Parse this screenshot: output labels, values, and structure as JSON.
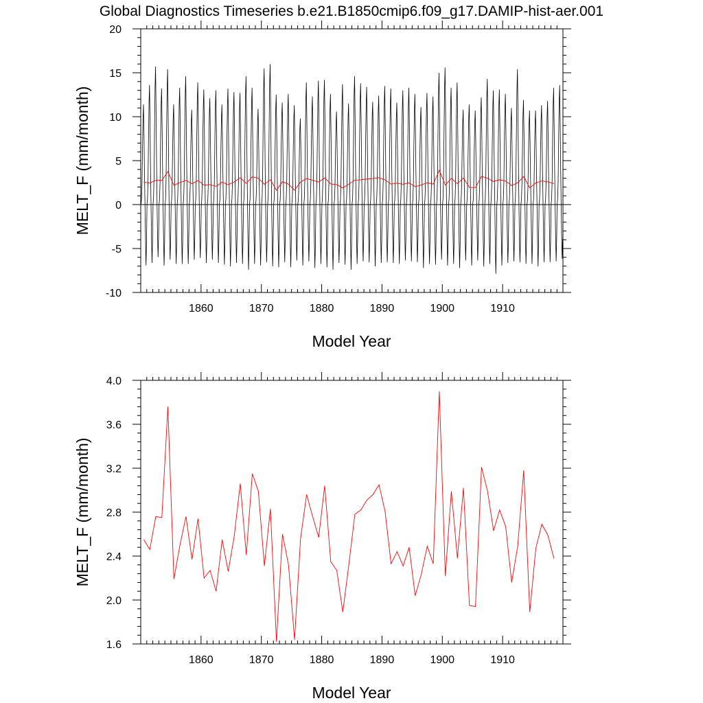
{
  "title": "Global Diagnostics Timeseries b.e21.B1850cmip6.f09_g17.DAMIP-hist-aer.001",
  "chart_data": [
    {
      "type": "line",
      "xlabel": "Model Year",
      "ylabel": "MELT_F (mm/month)",
      "xlim": [
        1850,
        1920
      ],
      "ylim": [
        -10,
        20
      ],
      "xticks": [
        "1860",
        "1870",
        "1880",
        "1890",
        "1900",
        "1910"
      ],
      "yticks": [
        "-10",
        "-5",
        "0",
        "5",
        "10",
        "15",
        "20"
      ],
      "reference_line": 0,
      "series": [
        {
          "kind": "monthly",
          "color": "#000000",
          "x_start": 1850.04,
          "x_step": 0.08333,
          "annual_peaks": [
            11.4,
            13.6,
            15.7,
            13.2,
            15.4,
            11.4,
            13.3,
            14.6,
            10.8,
            13.9,
            13.1,
            12.1,
            13.0,
            11.4,
            13.2,
            12.8,
            12.7,
            14.6,
            13.3,
            10.9,
            15.5,
            16.0,
            12.5,
            11.6,
            12.6,
            11.3,
            9.8,
            13.9,
            12.3,
            14.1,
            14.2,
            12.6,
            10.6,
            13.7,
            11.5,
            14.6,
            13.8,
            13.4,
            11.7,
            12.4,
            13.5,
            13.2,
            11.6,
            13.0,
            13.3,
            12.6,
            11.1,
            12.7,
            12.3,
            15.0,
            15.6,
            13.3,
            13.9,
            10.8,
            11.4,
            10.7,
            12.2,
            14.3,
            13.0,
            13.1,
            12.6,
            11.0,
            15.4,
            11.9,
            10.7,
            10.7,
            11.3,
            11.8,
            13.3,
            13.6
          ],
          "annual_troughs": [
            -7.3,
            -7.0,
            -6.3,
            -7.3,
            -6.6,
            -7.1,
            -7.1,
            -7.1,
            -6.6,
            -6.4,
            -7.0,
            -6.6,
            -7.0,
            -7.2,
            -7.4,
            -7.0,
            -7.1,
            -7.8,
            -7.1,
            -7.3,
            -6.9,
            -7.4,
            -7.5,
            -6.9,
            -7.5,
            -6.7,
            -7.3,
            -6.8,
            -7.6,
            -7.1,
            -7.5,
            -7.8,
            -7.0,
            -7.2,
            -7.8,
            -7.1,
            -6.8,
            -6.9,
            -7.4,
            -7.0,
            -6.9,
            -7.0,
            -7.1,
            -6.7,
            -6.8,
            -6.9,
            -7.6,
            -7.1,
            -7.2,
            -6.6,
            -7.3,
            -7.1,
            -7.6,
            -6.7,
            -7.3,
            -6.7,
            -7.4,
            -7.1,
            -8.3,
            -7.3,
            -7.0,
            -6.8,
            -6.9,
            -7.1,
            -7.1,
            -7.4,
            -6.9,
            -6.9,
            -6.8,
            -6.5
          ]
        },
        {
          "kind": "annual",
          "color": "#ff0000",
          "x": [
            1850.5,
            1851.5,
            1852.5,
            1853.5,
            1854.5,
            1855.5,
            1856.5,
            1857.5,
            1858.5,
            1859.5,
            1860.5,
            1861.5,
            1862.5,
            1863.5,
            1864.5,
            1865.5,
            1866.5,
            1867.5,
            1868.5,
            1869.5,
            1870.5,
            1871.5,
            1872.5,
            1873.5,
            1874.5,
            1875.5,
            1876.5,
            1877.5,
            1878.5,
            1879.5,
            1880.5,
            1881.5,
            1882.5,
            1883.5,
            1884.5,
            1885.5,
            1886.5,
            1887.5,
            1888.5,
            1889.5,
            1890.5,
            1891.5,
            1892.5,
            1893.5,
            1894.5,
            1895.5,
            1896.5,
            1897.5,
            1898.5,
            1899.5,
            1900.5,
            1901.5,
            1902.5,
            1903.5,
            1904.5,
            1905.5,
            1906.5,
            1907.5,
            1908.5,
            1909.5,
            1910.5,
            1911.5,
            1912.5,
            1913.5,
            1914.5,
            1915.5,
            1916.5,
            1917.5,
            1918.5
          ],
          "values": [
            2.55,
            2.46,
            2.76,
            2.75,
            3.76,
            2.19,
            2.5,
            2.76,
            2.37,
            2.74,
            2.2,
            2.27,
            2.08,
            2.55,
            2.26,
            2.58,
            3.06,
            2.41,
            3.15,
            2.99,
            2.31,
            2.83,
            1.62,
            2.6,
            2.32,
            1.64,
            2.56,
            2.96,
            2.76,
            2.57,
            3.04,
            2.35,
            2.27,
            1.89,
            2.32,
            2.78,
            2.82,
            2.91,
            2.96,
            3.05,
            2.81,
            2.33,
            2.44,
            2.31,
            2.48,
            2.04,
            2.23,
            2.49,
            2.33,
            3.9,
            2.22,
            2.99,
            2.38,
            3.02,
            1.95,
            1.94,
            3.21,
            2.99,
            2.63,
            2.82,
            2.67,
            2.16,
            2.49,
            3.18,
            1.89,
            2.47,
            2.69,
            2.59,
            2.38
          ]
        }
      ]
    },
    {
      "type": "line",
      "xlabel": "Model Year",
      "ylabel": "MELT_F (mm/month)",
      "xlim": [
        1850,
        1920
      ],
      "ylim": [
        1.6,
        4.0
      ],
      "xticks": [
        "1860",
        "1870",
        "1880",
        "1890",
        "1900",
        "1910"
      ],
      "yticks": [
        "1.6",
        "2.0",
        "2.4",
        "2.8",
        "3.2",
        "3.6",
        "4.0"
      ],
      "series": [
        {
          "kind": "annual",
          "color": "#ff0000",
          "x": [
            1850.5,
            1851.5,
            1852.5,
            1853.5,
            1854.5,
            1855.5,
            1856.5,
            1857.5,
            1858.5,
            1859.5,
            1860.5,
            1861.5,
            1862.5,
            1863.5,
            1864.5,
            1865.5,
            1866.5,
            1867.5,
            1868.5,
            1869.5,
            1870.5,
            1871.5,
            1872.5,
            1873.5,
            1874.5,
            1875.5,
            1876.5,
            1877.5,
            1878.5,
            1879.5,
            1880.5,
            1881.5,
            1882.5,
            1883.5,
            1884.5,
            1885.5,
            1886.5,
            1887.5,
            1888.5,
            1889.5,
            1890.5,
            1891.5,
            1892.5,
            1893.5,
            1894.5,
            1895.5,
            1896.5,
            1897.5,
            1898.5,
            1899.5,
            1900.5,
            1901.5,
            1902.5,
            1903.5,
            1904.5,
            1905.5,
            1906.5,
            1907.5,
            1908.5,
            1909.5,
            1910.5,
            1911.5,
            1912.5,
            1913.5,
            1914.5,
            1915.5,
            1916.5,
            1917.5,
            1918.5
          ],
          "values": [
            2.55,
            2.46,
            2.76,
            2.75,
            3.76,
            2.19,
            2.5,
            2.76,
            2.37,
            2.74,
            2.2,
            2.27,
            2.08,
            2.55,
            2.26,
            2.58,
            3.06,
            2.41,
            3.15,
            2.99,
            2.31,
            2.83,
            1.62,
            2.6,
            2.32,
            1.64,
            2.56,
            2.96,
            2.76,
            2.57,
            3.04,
            2.35,
            2.27,
            1.89,
            2.32,
            2.78,
            2.82,
            2.91,
            2.96,
            3.05,
            2.81,
            2.33,
            2.44,
            2.31,
            2.48,
            2.04,
            2.23,
            2.49,
            2.33,
            3.9,
            2.22,
            2.99,
            2.38,
            3.02,
            1.95,
            1.94,
            3.21,
            2.99,
            2.63,
            2.82,
            2.67,
            2.16,
            2.49,
            3.18,
            1.89,
            2.47,
            2.69,
            2.59,
            2.38
          ]
        }
      ]
    }
  ]
}
